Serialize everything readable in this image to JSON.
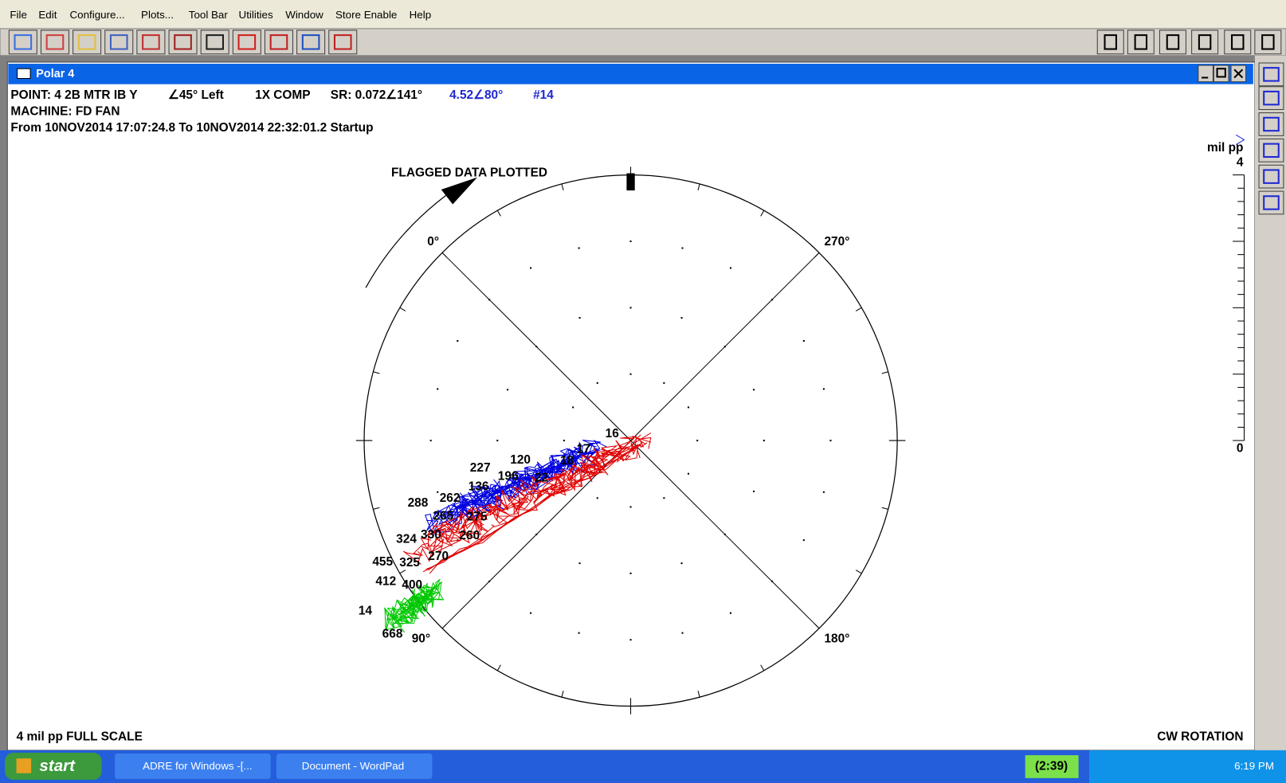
{
  "menu": [
    "File",
    "Edit",
    "Configure...",
    "Plots...",
    "Tool Bar",
    "Utilities",
    "Window",
    "Store Enable",
    "Help"
  ],
  "window": {
    "title": "Polar 4"
  },
  "header": {
    "point": "POINT: 4 2B MTR IB Y",
    "orientation": "∠45° Left",
    "mode": "1X COMP",
    "slow_roll": "SR: 0.072∠141°",
    "reading": "4.52∠80°",
    "sample": "#14",
    "machine": "MACHINE: FD FAN",
    "range": "From 10NOV2014 17:07:24.8 To 10NOV2014 22:32:01.2 Startup"
  },
  "plot": {
    "flag": "FLAGGED DATA PLOTTED",
    "angles": [
      "0°",
      "270°",
      "90°",
      "180°"
    ],
    "scale_unit": "mil pp",
    "scale_max": "4",
    "scale_min": "0",
    "point_labels": [
      "16",
      "17",
      "18",
      "120",
      "227",
      "196",
      "22",
      "136",
      "262",
      "288",
      "265",
      "275",
      "324",
      "330",
      "260",
      "455",
      "325",
      "270",
      "412",
      "400",
      "14",
      "668"
    ],
    "full_scale": "4 mil pp   FULL SCALE",
    "rotation": "CW ROTATION"
  },
  "taskbar": {
    "start": "start",
    "items": [
      "ADRE for Windows -[...",
      "Document - WordPad"
    ],
    "timer": "(2:39)",
    "clock": "6:19 PM"
  }
}
